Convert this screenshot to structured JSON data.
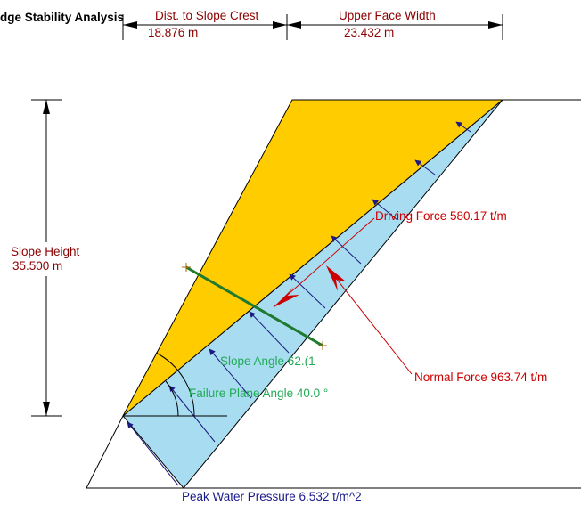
{
  "title": "dge Stability Analysis",
  "dims": {
    "dist_to_crest_label": "Dist. to Slope Crest",
    "dist_to_crest_value": "18.876 m",
    "upper_face_label": "Upper Face Width",
    "upper_face_value": "23.432 m",
    "slope_height_label": "Slope Height",
    "slope_height_value": "35.500 m"
  },
  "labels": {
    "driving_force": "Driving Force 580.17 t/m",
    "normal_force": "Normal Force 963.74 t/m",
    "slope_angle": "Slope Angle 62.(1",
    "failure_plane_angle": "Failure Plane Angle 40.0 °",
    "peak_water_pressure": "Peak Water Pressure 6.532 t/m^2"
  },
  "colors": {
    "wedge": "#ffcc00",
    "water": "#a8dcf0",
    "force": "#cc0000",
    "dim_text": "#8b0000",
    "angle_text": "#22aa55",
    "water_arrow": "#1a1a80",
    "bolt": "#1e7a2e",
    "water_text": "#1a1a8b"
  }
}
